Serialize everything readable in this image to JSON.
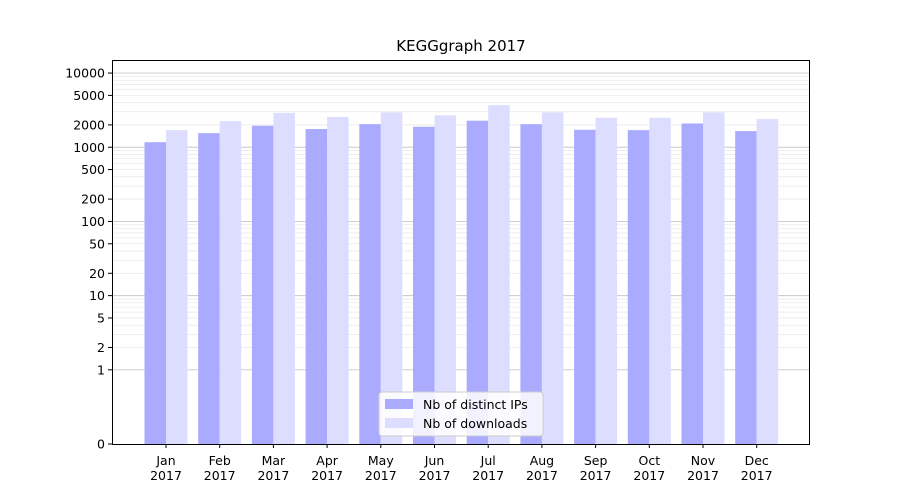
{
  "chart_data": {
    "type": "bar",
    "title": "KEGGgraph 2017",
    "xlabel": "",
    "ylabel": "",
    "yscale": "symlog",
    "ylim": [
      0,
      15000
    ],
    "grid": true,
    "legend_position": "bottom-center",
    "categories": [
      "Jan\n2017",
      "Feb\n2017",
      "Mar\n2017",
      "Apr\n2017",
      "May\n2017",
      "Jun\n2017",
      "Jul\n2017",
      "Aug\n2017",
      "Sep\n2017",
      "Oct\n2017",
      "Nov\n2017",
      "Dec\n2017"
    ],
    "yticks": [
      0,
      1,
      2,
      5,
      10,
      20,
      50,
      100,
      200,
      500,
      1000,
      2000,
      5000,
      10000
    ],
    "series": [
      {
        "name": "Nb of distinct IPs",
        "color": "#aaaaff",
        "values": [
          1170,
          1550,
          1950,
          1760,
          2050,
          1890,
          2280,
          2050,
          1720,
          1700,
          2090,
          1650
        ]
      },
      {
        "name": "Nb of downloads",
        "color": "#ddddff",
        "values": [
          1700,
          2250,
          2900,
          2560,
          2950,
          2700,
          3700,
          2950,
          2500,
          2500,
          2950,
          2400
        ]
      }
    ]
  }
}
